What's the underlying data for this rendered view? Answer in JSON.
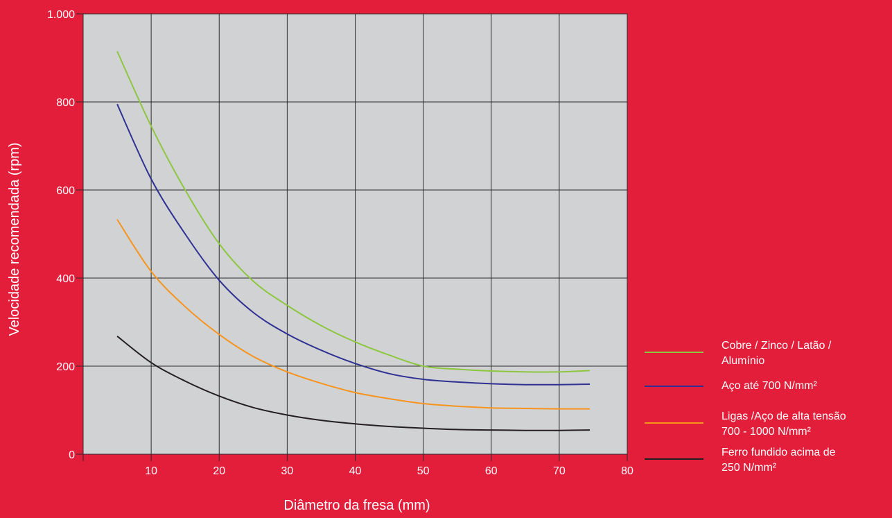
{
  "colors": {
    "background": "#e31e3b",
    "plot_area": "#d1d2d4",
    "grid": "#2b2b2b",
    "text": "#ffffff"
  },
  "chart_data": {
    "type": "line",
    "title": "",
    "xlabel": "Diâmetro da fresa (mm)",
    "ylabel": "Velocidade recomendada (rpm)",
    "xlim": [
      0,
      80
    ],
    "ylim": [
      0,
      1000
    ],
    "x_ticks": [
      10,
      20,
      30,
      40,
      50,
      60,
      70,
      80
    ],
    "x_tick_labels": [
      "10",
      "20",
      "30",
      "40",
      "50",
      "60",
      "70",
      "80"
    ],
    "y_ticks": [
      0,
      200,
      400,
      600,
      800,
      1000
    ],
    "y_tick_labels": [
      "0",
      "200",
      "400",
      "600",
      "800",
      "1.000"
    ],
    "grid": true,
    "legend_position": "right",
    "series": [
      {
        "name_lines": [
          "Cobre / Zinco / Latão /",
          "Alumínio"
        ],
        "color": "#8dc63f",
        "x": [
          5,
          10,
          15,
          20,
          25,
          30,
          35,
          40,
          45,
          50,
          55,
          60,
          65,
          70,
          74.5
        ],
        "y": [
          915,
          745,
          600,
          478,
          393,
          338,
          292,
          255,
          225,
          200,
          193,
          189,
          187,
          187,
          190
        ]
      },
      {
        "name_lines": [
          "Aço até 700 N/mm²"
        ],
        "color": "#2e3192",
        "x": [
          5,
          10,
          15,
          20,
          25,
          30,
          35,
          40,
          45,
          50,
          55,
          60,
          65,
          70,
          74.5
        ],
        "y": [
          795,
          625,
          500,
          395,
          322,
          273,
          236,
          206,
          183,
          170,
          164,
          160,
          158,
          158,
          159
        ]
      },
      {
        "name_lines": [
          "Ligas /Aço de alta tensão",
          "700  - 1000 N/mm²"
        ],
        "color": "#f7941d",
        "x": [
          5,
          10,
          15,
          20,
          25,
          30,
          35,
          40,
          45,
          50,
          55,
          60,
          65,
          70,
          74.5
        ],
        "y": [
          533,
          415,
          335,
          272,
          222,
          187,
          161,
          140,
          126,
          115,
          109,
          105,
          104,
          103,
          103
        ]
      },
      {
        "name_lines": [
          "Ferro fundido acima de",
          "250 N/mm²"
        ],
        "color": "#231f20",
        "x": [
          5,
          10,
          15,
          20,
          25,
          30,
          35,
          40,
          45,
          50,
          55,
          60,
          65,
          70,
          74.5
        ],
        "y": [
          268,
          208,
          166,
          132,
          106,
          89,
          77,
          69,
          63,
          59,
          56,
          55,
          54,
          54,
          55
        ]
      }
    ]
  }
}
